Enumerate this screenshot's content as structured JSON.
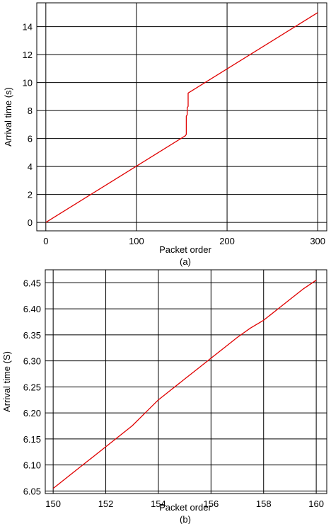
{
  "chart_data": [
    {
      "type": "line",
      "caption": "(a)",
      "xlabel": "Packet order",
      "ylabel": "Arrival time (s)",
      "xlim": [
        -10,
        310
      ],
      "ylim": [
        -0.6,
        15.7
      ],
      "xticks": [
        0,
        100,
        200,
        300
      ],
      "yticks": [
        0,
        2,
        4,
        6,
        8,
        10,
        12,
        14
      ],
      "grid": true,
      "series": [
        {
          "color": "#e00000",
          "x": [
            0,
            154,
            155,
            155,
            156,
            156,
            157,
            157,
            300
          ],
          "y": [
            0,
            6.2,
            6.3,
            7.6,
            7.7,
            8.2,
            8.3,
            9.25,
            15.0
          ]
        }
      ]
    },
    {
      "type": "line",
      "caption": "(b)",
      "xlabel": "Packet order",
      "ylabel": "Arrival time (S)",
      "xlim": [
        149.7,
        160.4
      ],
      "ylim": [
        6.045,
        6.475
      ],
      "xticks": [
        150,
        152,
        154,
        156,
        158,
        160
      ],
      "yticks": [
        6.05,
        6.1,
        6.15,
        6.2,
        6.25,
        6.3,
        6.35,
        6.4,
        6.45
      ],
      "grid": true,
      "series": [
        {
          "color": "#e00000",
          "x": [
            150,
            150.5,
            151,
            151.5,
            152,
            152.5,
            153,
            153.5,
            154,
            154.5,
            155,
            155.5,
            156,
            156.5,
            157,
            157.5,
            158,
            158.5,
            159,
            159.5,
            160
          ],
          "y": [
            6.055,
            6.075,
            6.095,
            6.115,
            6.135,
            6.155,
            6.175,
            6.2,
            6.225,
            6.245,
            6.265,
            6.285,
            6.305,
            6.325,
            6.345,
            6.363,
            6.378,
            6.398,
            6.418,
            6.438,
            6.455
          ]
        }
      ]
    }
  ]
}
